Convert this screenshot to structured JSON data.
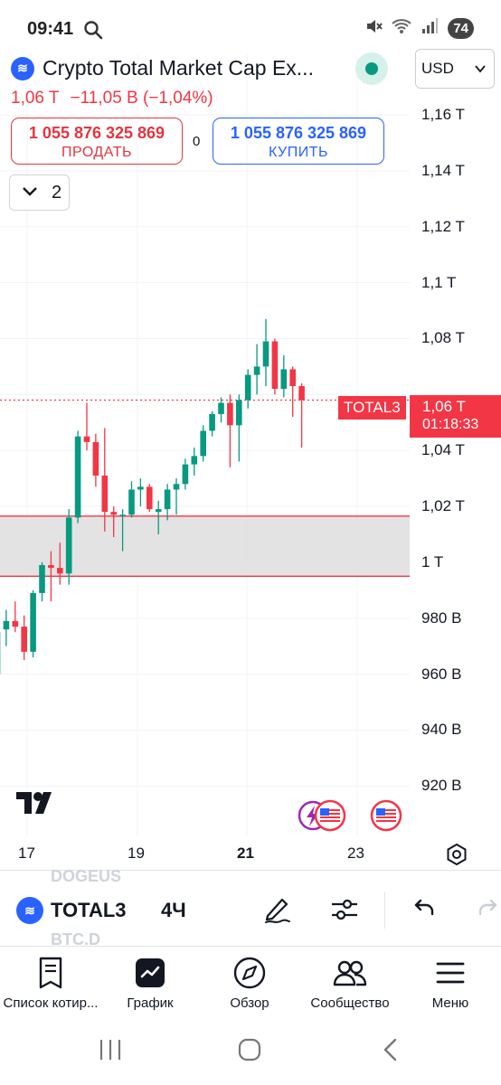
{
  "status_bar": {
    "time": "09:41",
    "battery": "74",
    "icons": [
      "search-icon",
      "mute-icon",
      "wifi-icon",
      "signal-icon"
    ]
  },
  "header": {
    "symbol_title": "Crypto Total Market Cap Ex...",
    "logo_icon": "crypto-logo-icon",
    "currency": "USD",
    "price": "1,06 T",
    "change": "−11,05 B (−1,04%)",
    "change_color": "#f23645"
  },
  "trade": {
    "sell_price": "1 055 876 325 869",
    "sell_label": "ПРОДАТЬ",
    "spread": "0",
    "buy_price": "1 055 876 325 869",
    "buy_label": "КУПИТЬ"
  },
  "indicators_toggle": {
    "count": "2"
  },
  "chart": {
    "y_ticks": [
      "1,16 T",
      "1,14 T",
      "1,12 T",
      "1,1 T",
      "1,08 T",
      "1,06 T",
      "1,04 T",
      "1,02 T",
      "1 T",
      "980 B",
      "960 B",
      "940 B",
      "920 B"
    ],
    "x_ticks": [
      {
        "label": "17",
        "bold": false
      },
      {
        "label": "19",
        "bold": false
      },
      {
        "label": "21",
        "bold": true
      },
      {
        "label": "23",
        "bold": false
      }
    ],
    "symbol_tag": "TOTAL3",
    "last_price_label": "1,06 T",
    "countdown": "01:18:33"
  },
  "chart_data": {
    "type": "candlestick",
    "title": "",
    "timeframe": "4Ч",
    "ylim": [
      910,
      1170
    ],
    "y_unit": "B",
    "up_color": "#089981",
    "down_color": "#f23645",
    "last_price": 1058,
    "zone": {
      "low": 995,
      "high": 1016.5
    },
    "candles": [
      {
        "d": 0,
        "o": 960,
        "h": 978,
        "l": 956,
        "c": 975
      },
      {
        "d": 1,
        "o": 976,
        "h": 983,
        "l": 970,
        "c": 979
      },
      {
        "d": 2,
        "o": 979,
        "h": 986,
        "l": 975,
        "c": 977
      },
      {
        "d": 3,
        "o": 977,
        "h": 981,
        "l": 965,
        "c": 968
      },
      {
        "d": 4,
        "o": 968,
        "h": 990,
        "l": 966,
        "c": 989
      },
      {
        "d": 5,
        "o": 989,
        "h": 1000,
        "l": 986,
        "c": 999
      },
      {
        "d": 6,
        "o": 999,
        "h": 1004,
        "l": 986,
        "c": 998
      },
      {
        "d": 7,
        "o": 998,
        "h": 1007,
        "l": 992,
        "c": 996
      },
      {
        "d": 8,
        "o": 996,
        "h": 1019,
        "l": 992,
        "c": 1016
      },
      {
        "d": 9,
        "o": 1016,
        "h": 1047,
        "l": 1014,
        "c": 1045
      },
      {
        "d": 10,
        "o": 1045,
        "h": 1057,
        "l": 1040,
        "c": 1043
      },
      {
        "d": 11,
        "o": 1043,
        "h": 1046,
        "l": 1027,
        "c": 1031
      },
      {
        "d": 12,
        "o": 1031,
        "h": 1048,
        "l": 1011,
        "c": 1018
      },
      {
        "d": 13,
        "o": 1018,
        "h": 1020,
        "l": 1009,
        "c": 1017
      },
      {
        "d": 14,
        "o": 1017,
        "h": 1019,
        "l": 1004,
        "c": 1017
      },
      {
        "d": 15,
        "o": 1017,
        "h": 1029,
        "l": 1016,
        "c": 1026
      },
      {
        "d": 16,
        "o": 1026,
        "h": 1030,
        "l": 1020,
        "c": 1027
      },
      {
        "d": 17,
        "o": 1027,
        "h": 1028,
        "l": 1018,
        "c": 1019
      },
      {
        "d": 18,
        "o": 1018,
        "h": 1022,
        "l": 1010,
        "c": 1019
      },
      {
        "d": 19,
        "o": 1019,
        "h": 1028,
        "l": 1015,
        "c": 1026
      },
      {
        "d": 20,
        "o": 1026,
        "h": 1030,
        "l": 1017,
        "c": 1028
      },
      {
        "d": 21,
        "o": 1028,
        "h": 1037,
        "l": 1026,
        "c": 1035
      },
      {
        "d": 22,
        "o": 1035,
        "h": 1041,
        "l": 1031,
        "c": 1038
      },
      {
        "d": 23,
        "o": 1038,
        "h": 1049,
        "l": 1036,
        "c": 1047
      },
      {
        "d": 24,
        "o": 1047,
        "h": 1054,
        "l": 1045,
        "c": 1053
      },
      {
        "d": 25,
        "o": 1053,
        "h": 1059,
        "l": 1050,
        "c": 1057
      },
      {
        "d": 26,
        "o": 1057,
        "h": 1060,
        "l": 1034,
        "c": 1049
      },
      {
        "d": 27,
        "o": 1049,
        "h": 1060,
        "l": 1036,
        "c": 1058
      },
      {
        "d": 28,
        "o": 1058,
        "h": 1069,
        "l": 1055,
        "c": 1067
      },
      {
        "d": 29,
        "o": 1067,
        "h": 1078,
        "l": 1060,
        "c": 1070
      },
      {
        "d": 30,
        "o": 1070,
        "h": 1087,
        "l": 1063,
        "c": 1079
      },
      {
        "d": 31,
        "o": 1079,
        "h": 1080,
        "l": 1060,
        "c": 1062
      },
      {
        "d": 32,
        "o": 1062,
        "h": 1074,
        "l": 1059,
        "c": 1069
      },
      {
        "d": 33,
        "o": 1069,
        "h": 1070,
        "l": 1052,
        "c": 1063
      },
      {
        "d": 34,
        "o": 1063,
        "h": 1064,
        "l": 1041,
        "c": 1058
      }
    ]
  },
  "toolbar": {
    "symbol": "TOTAL3",
    "timeframe": "4Ч",
    "ghost_above": "DOGEUS",
    "ghost_below": "BTC.D",
    "icons": [
      "pencil-icon",
      "sliders-icon",
      "undo-icon",
      "redo-icon"
    ]
  },
  "bottom_nav": [
    {
      "label": "Список котир...",
      "icon": "watchlist-icon"
    },
    {
      "label": "График",
      "icon": "chart-icon"
    },
    {
      "label": "Обзор",
      "icon": "compass-icon"
    },
    {
      "label": "Сообщество",
      "icon": "community-icon"
    },
    {
      "label": "Меню",
      "icon": "menu-icon"
    }
  ]
}
